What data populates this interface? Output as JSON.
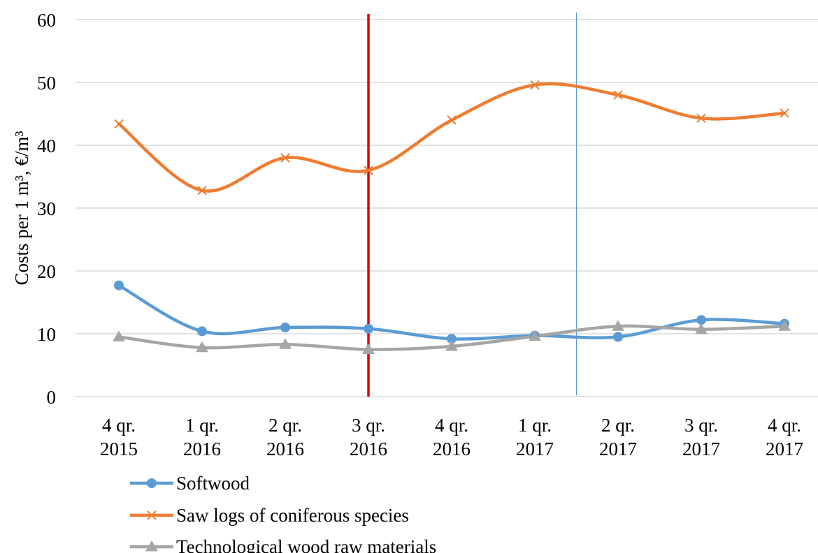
{
  "chart_data": {
    "type": "line",
    "smooth": true,
    "ylabel": "Costs per 1 m³, €/m³",
    "ylim": [
      0,
      60
    ],
    "yticks": [
      0,
      10,
      20,
      30,
      40,
      50,
      60
    ],
    "grid": "horizontal",
    "legend_position": "bottom-left",
    "categories": [
      {
        "line1": "4 qr.",
        "line2": "2015"
      },
      {
        "line1": "1 qr.",
        "line2": "2016"
      },
      {
        "line1": "2 qr.",
        "line2": "2016"
      },
      {
        "line1": "3 qr.",
        "line2": "2016"
      },
      {
        "line1": "4 qr.",
        "line2": "2016"
      },
      {
        "line1": "1 qr.",
        "line2": "2017"
      },
      {
        "line1": "2 qr.",
        "line2": "2017"
      },
      {
        "line1": "3 qr.",
        "line2": "2017"
      },
      {
        "line1": "4 qr.",
        "line2": "2017"
      }
    ],
    "series": [
      {
        "name": "Softwood",
        "color": "#5b9bd5",
        "marker": "circle",
        "values": [
          17.7,
          10.4,
          11.0,
          10.8,
          9.2,
          9.7,
          9.5,
          12.2,
          11.6
        ]
      },
      {
        "name": "Saw logs of coniferous species",
        "color": "#ed7d31",
        "marker": "x",
        "values": [
          43.4,
          32.8,
          38.0,
          36.0,
          44.0,
          49.6,
          48.0,
          44.3,
          45.1
        ]
      },
      {
        "name": "Technological wood raw materials",
        "color": "#a5a5a5",
        "marker": "triangle",
        "values": [
          9.5,
          7.8,
          8.3,
          7.5,
          8.0,
          9.6,
          11.2,
          10.7,
          11.2
        ]
      }
    ],
    "reference_lines": [
      {
        "at_category_index": 3,
        "color": "#e00000",
        "style": "thick"
      },
      {
        "at_category_index": 5.5,
        "color": "#5b9bd5",
        "style": "thin"
      }
    ]
  }
}
